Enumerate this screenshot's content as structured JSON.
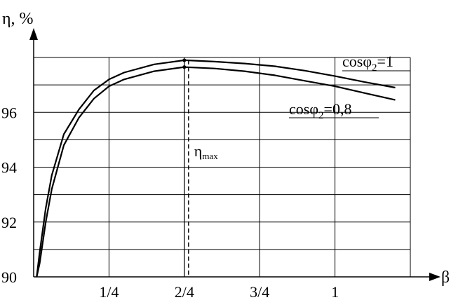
{
  "chart_data": {
    "type": "line",
    "ylabel": "η, %",
    "xlabel": "β",
    "x_ticks": [
      "1/4",
      "2/4",
      "3/4",
      "1"
    ],
    "y_ticks": [
      "90",
      "92",
      "94",
      "96"
    ],
    "xlim": [
      0,
      1.25
    ],
    "ylim": [
      90,
      98
    ],
    "grid": true,
    "series": [
      {
        "name": "cosφ2=1",
        "name_main": "cosφ",
        "name_sub": "2",
        "name_tail": "=1",
        "x": [
          0.01,
          0.02,
          0.04,
          0.06,
          0.1,
          0.15,
          0.2,
          0.25,
          0.3,
          0.4,
          0.5,
          0.6,
          0.7,
          0.8,
          0.9,
          1.0,
          1.1,
          1.2
        ],
        "y": [
          90.0,
          90.9,
          92.5,
          93.7,
          95.2,
          96.1,
          96.8,
          97.2,
          97.45,
          97.75,
          97.9,
          97.85,
          97.78,
          97.68,
          97.52,
          97.32,
          97.1,
          96.9
        ]
      },
      {
        "name": "cosφ2=0,8",
        "name_main": "cosφ",
        "name_sub": "2",
        "name_tail": "=0,8",
        "x": [
          0.01,
          0.02,
          0.04,
          0.06,
          0.1,
          0.15,
          0.2,
          0.25,
          0.3,
          0.4,
          0.5,
          0.6,
          0.7,
          0.8,
          0.9,
          1.0,
          1.1,
          1.2
        ],
        "y": [
          90.0,
          90.5,
          92.0,
          93.2,
          94.8,
          95.8,
          96.5,
          96.95,
          97.2,
          97.5,
          97.65,
          97.6,
          97.5,
          97.35,
          97.15,
          96.95,
          96.7,
          96.45
        ]
      }
    ],
    "annotations": [
      {
        "text": "η",
        "sub": "max",
        "x": 0.5
      }
    ]
  }
}
